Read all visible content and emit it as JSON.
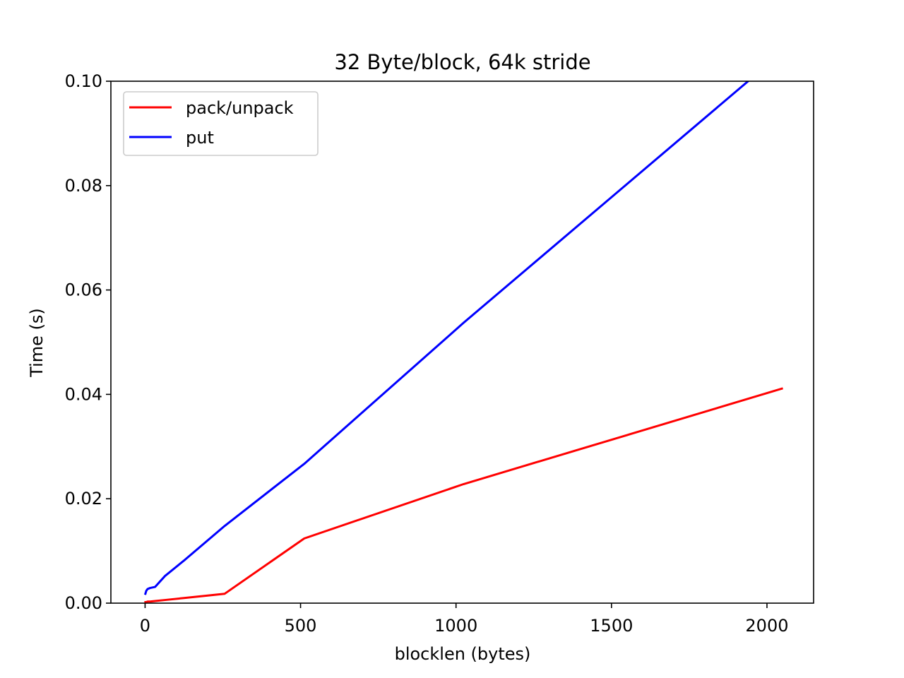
{
  "chart_data": {
    "type": "line",
    "title": "32 Byte/block, 64k stride",
    "xlabel": "blocklen (bytes)",
    "ylabel": "Time (s)",
    "xlim": [
      -110,
      2150
    ],
    "ylim": [
      0,
      0.1
    ],
    "xticks": [
      0,
      500,
      1000,
      1500,
      2000
    ],
    "xtick_labels": [
      "0",
      "500",
      "1000",
      "1500",
      "2000"
    ],
    "yticks": [
      0,
      0.02,
      0.04,
      0.06,
      0.08,
      0.1
    ],
    "ytick_labels": [
      "0.00",
      "0.02",
      "0.04",
      "0.06",
      "0.08",
      "0.10"
    ],
    "grid": false,
    "legend_position": "top-left",
    "series": [
      {
        "name": "pack/unpack",
        "color": "#ff0000",
        "x": [
          1,
          2,
          4,
          8,
          16,
          32,
          64,
          128,
          256,
          512,
          1024,
          2048
        ],
        "y": [
          0.0002,
          0.0002,
          0.0002,
          0.0003,
          0.0003,
          0.0004,
          0.0006,
          0.001,
          0.0018,
          0.0124,
          0.0228,
          0.0411
        ]
      },
      {
        "name": "put",
        "color": "#0000ff",
        "x": [
          1,
          2,
          4,
          8,
          16,
          32,
          64,
          128,
          256,
          512,
          1024,
          2048
        ],
        "y": [
          0.0018,
          0.002,
          0.0024,
          0.0027,
          0.0029,
          0.0031,
          0.0052,
          0.0083,
          0.0148,
          0.0267,
          0.0537,
          0.1055
        ]
      }
    ]
  }
}
